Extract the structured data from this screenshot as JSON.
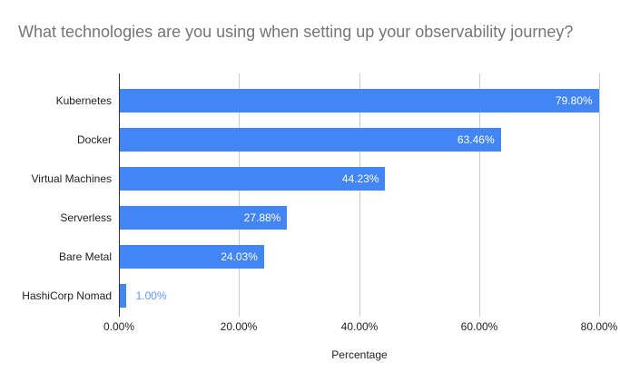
{
  "title": "What technologies are you using when setting up your observability journey?",
  "chart_data": {
    "type": "bar",
    "orientation": "horizontal",
    "title": "What technologies are you using when setting up your observability journey?",
    "categories": [
      "Kubernetes",
      "Docker",
      "Virtual Machines",
      "Serverless",
      "Bare Metal",
      "HashiCorp Nomad"
    ],
    "values": [
      79.8,
      63.46,
      44.23,
      27.88,
      24.03,
      1.0
    ],
    "data_labels": [
      "79.80%",
      "63.46%",
      "44.23%",
      "27.88%",
      "24.03%",
      "1.00%"
    ],
    "xlabel": "Percentage",
    "ylabel": "",
    "x_ticks": {
      "values": [
        0,
        20,
        40,
        60,
        80
      ],
      "labels": [
        "0.00%",
        "20.00%",
        "40.00%",
        "60.00%",
        "80.00%"
      ]
    },
    "xlim": [
      0,
      81.8
    ],
    "grid": true,
    "legend": "none",
    "colors": {
      "bar": "#4285f4",
      "bar_label": "#ffffff",
      "outside_label": "#5e97f6",
      "title": "#757575",
      "axis_text": "#222222",
      "gridline": "#cccccc",
      "baseline": "#333333",
      "background": "#ffffff"
    }
  }
}
